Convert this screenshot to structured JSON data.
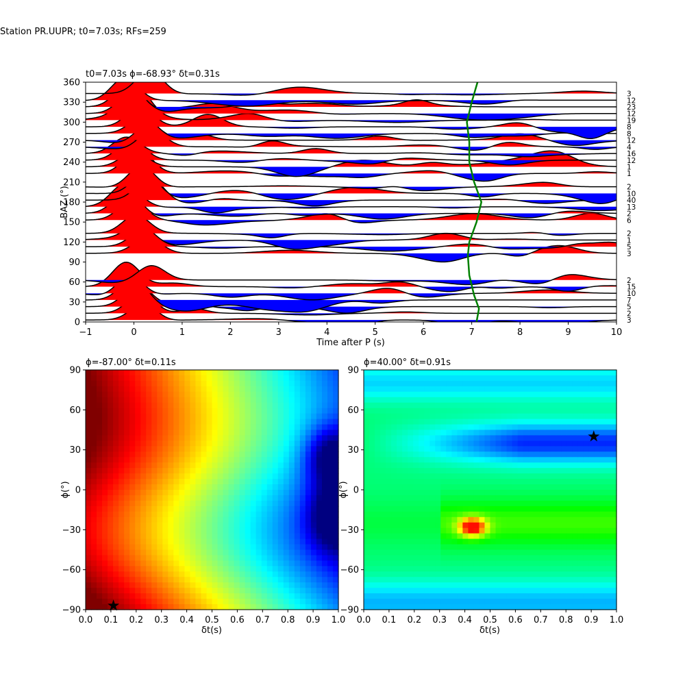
{
  "suptitle": "Station PR.UUPR; t0=7.03s; RFs=259",
  "colors": {
    "positive": "#ff0000",
    "negative": "#0000ff",
    "curve": "#008000",
    "trace": "#000000"
  },
  "chart_data": [
    {
      "type": "area",
      "title": "t0=7.03s ϕ=-68.93° δt=0.31s",
      "xlabel": "Time after P (s)",
      "ylabel": "BAZ (°)",
      "xlim": [
        -1,
        10
      ],
      "ylim": [
        0,
        360
      ],
      "xticks": [
        "−1",
        "0",
        "1",
        "2",
        "3",
        "4",
        "5",
        "6",
        "7",
        "8",
        "9",
        "10"
      ],
      "yticks": [
        "0",
        "30",
        "60",
        "90",
        "120",
        "150",
        "180",
        "210",
        "240",
        "270",
        "300",
        "330",
        "360"
      ],
      "right_labels": [
        {
          "baz": 3,
          "text": "3"
        },
        {
          "baz": 13,
          "text": "2"
        },
        {
          "baz": 23,
          "text": "5"
        },
        {
          "baz": 33,
          "text": "7"
        },
        {
          "baz": 43,
          "text": "10"
        },
        {
          "baz": 53,
          "text": "15"
        },
        {
          "baz": 63,
          "text": "2"
        },
        {
          "baz": 103,
          "text": "3"
        },
        {
          "baz": 113,
          "text": "5"
        },
        {
          "baz": 123,
          "text": "1"
        },
        {
          "baz": 133,
          "text": "2"
        },
        {
          "baz": 153,
          "text": "6"
        },
        {
          "baz": 163,
          "text": "2"
        },
        {
          "baz": 173,
          "text": "13"
        },
        {
          "baz": 183,
          "text": "40"
        },
        {
          "baz": 193,
          "text": "10"
        },
        {
          "baz": 203,
          "text": "2"
        },
        {
          "baz": 223,
          "text": "1"
        },
        {
          "baz": 233,
          "text": "1"
        },
        {
          "baz": 243,
          "text": "12"
        },
        {
          "baz": 253,
          "text": "16"
        },
        {
          "baz": 263,
          "text": "4"
        },
        {
          "baz": 273,
          "text": "12"
        },
        {
          "baz": 283,
          "text": "8"
        },
        {
          "baz": 293,
          "text": "8"
        },
        {
          "baz": 303,
          "text": "19"
        },
        {
          "baz": 313,
          "text": "12"
        },
        {
          "baz": 323,
          "text": "23"
        },
        {
          "baz": 333,
          "text": "12"
        },
        {
          "baz": 343,
          "text": "3"
        }
      ],
      "t0_curve": [
        [
          7.1,
          0
        ],
        [
          7.15,
          20
        ],
        [
          7.05,
          40
        ],
        [
          6.95,
          70
        ],
        [
          6.92,
          100
        ],
        [
          6.95,
          120
        ],
        [
          7.1,
          150
        ],
        [
          7.2,
          180
        ],
        [
          7.05,
          210
        ],
        [
          6.95,
          240
        ],
        [
          6.95,
          270
        ],
        [
          6.9,
          300
        ],
        [
          7.0,
          330
        ],
        [
          7.12,
          360
        ]
      ]
    },
    {
      "type": "heatmap",
      "title": "ϕ=-87.00° δt=0.11s",
      "xlabel": "δt(s)",
      "ylabel": "ϕ(°)",
      "xlim": [
        0,
        1
      ],
      "ylim": [
        -90,
        90
      ],
      "xticks": [
        "0.0",
        "0.1",
        "0.2",
        "0.3",
        "0.4",
        "0.5",
        "0.6",
        "0.7",
        "0.8",
        "0.9",
        "1.0"
      ],
      "yticks": [
        "−90",
        "−60",
        "−30",
        "0",
        "30",
        "60",
        "90"
      ],
      "best": {
        "dt": 0.11,
        "phi": -87
      }
    },
    {
      "type": "heatmap",
      "title": "ϕ=40.00° δt=0.91s",
      "xlabel": "δt(s)",
      "ylabel": "ϕ(°)",
      "xlim": [
        0,
        1
      ],
      "ylim": [
        -90,
        90
      ],
      "xticks": [
        "0.0",
        "0.1",
        "0.2",
        "0.3",
        "0.4",
        "0.5",
        "0.6",
        "0.7",
        "0.8",
        "0.9",
        "1.0"
      ],
      "yticks": [
        "−90",
        "−60",
        "−30",
        "0",
        "30",
        "60",
        "90"
      ],
      "best": {
        "dt": 0.91,
        "phi": 40
      }
    }
  ]
}
